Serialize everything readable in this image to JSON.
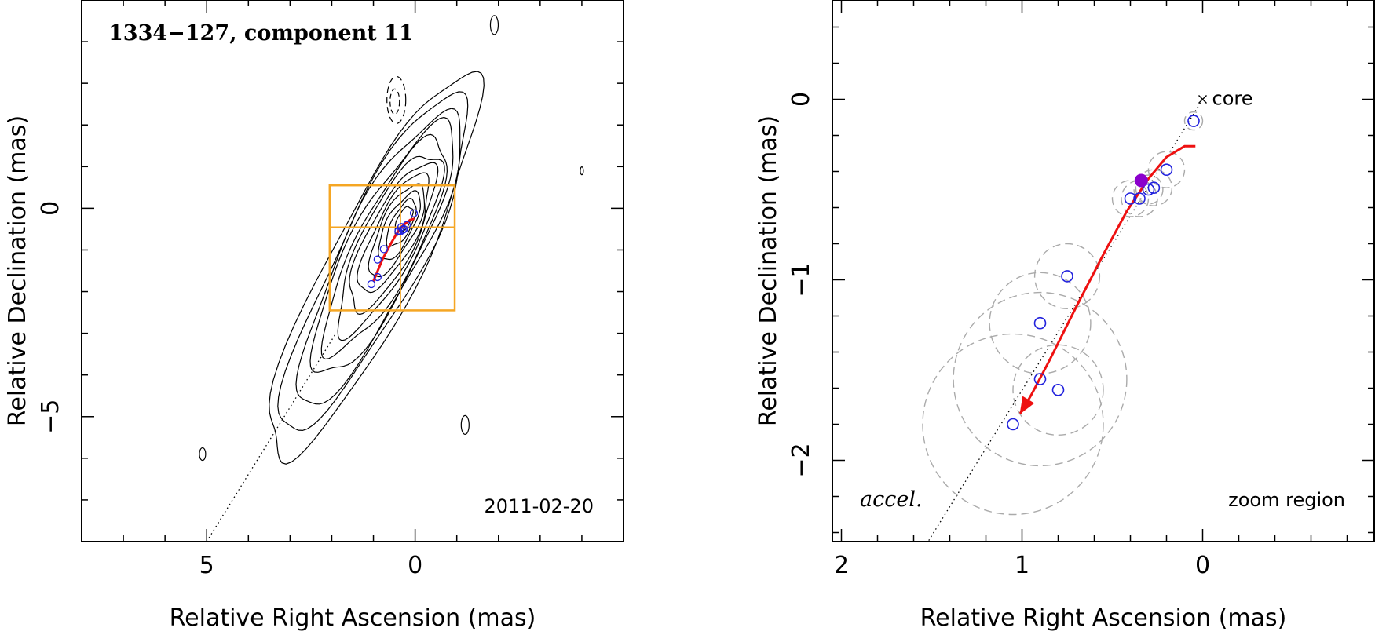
{
  "chart_data": [
    {
      "type": "contour",
      "title": "1334−127, component 11",
      "date_label": "2011-02-20",
      "xlabel": "Relative Right Ascension (mas)",
      "ylabel": "Relative Declination (mas)",
      "xlim": [
        8.0,
        -5.0
      ],
      "ylim": [
        -8.0,
        5.0
      ],
      "xticks": [
        {
          "value": 5,
          "label": "5"
        },
        {
          "value": 0,
          "label": "0"
        }
      ],
      "yticks": [
        {
          "value": 0,
          "label": "0"
        },
        {
          "value": -5,
          "label": "−5"
        }
      ],
      "x_minor_step": 1,
      "y_minor_step": 1,
      "jet_axis": {
        "style": "dotted",
        "from": [
          5.0,
          -8.0
        ],
        "to": [
          1.9,
          -3.0
        ]
      },
      "zoom_box": {
        "x": [
          2.05,
          -0.95
        ],
        "y": [
          -2.45,
          0.55
        ],
        "divider_x": 0.35,
        "divider_y": -0.45,
        "color": "#f5a623"
      },
      "positions": {
        "color": "#2222dd",
        "points": [
          [
            1.05,
            -1.82
          ],
          [
            0.9,
            -1.65
          ],
          [
            0.9,
            -1.23
          ],
          [
            0.75,
            -0.98
          ],
          [
            0.4,
            -0.55
          ],
          [
            0.35,
            -0.55
          ],
          [
            0.33,
            -0.45
          ],
          [
            0.3,
            -0.52
          ],
          [
            0.27,
            -0.5
          ],
          [
            0.2,
            -0.4
          ],
          [
            0.03,
            -0.12
          ]
        ]
      },
      "trajectory": {
        "color": "#ee1111",
        "points": [
          [
            1.0,
            -1.75
          ],
          [
            0.78,
            -1.22
          ],
          [
            0.6,
            -0.88
          ],
          [
            0.45,
            -0.62
          ],
          [
            0.3,
            -0.42
          ],
          [
            0.12,
            -0.28
          ],
          [
            0.02,
            -0.25
          ]
        ]
      },
      "contours": {
        "center": [
          0.0,
          0.0
        ],
        "color": "#000000",
        "levels": 12,
        "negative_style": "dashed"
      }
    },
    {
      "type": "scatter",
      "annotation_left": "accel.",
      "annotation_right": "zoom region",
      "core_label": "core",
      "xlabel": "Relative Right Ascension (mas)",
      "ylabel": "Relative Declination (mas)",
      "xlim": [
        2.05,
        -0.95
      ],
      "ylim": [
        -2.45,
        0.55
      ],
      "xticks": [
        {
          "value": 2,
          "label": "2"
        },
        {
          "value": 1,
          "label": "1"
        },
        {
          "value": 0,
          "label": "0"
        }
      ],
      "yticks": [
        {
          "value": 0,
          "label": "0"
        },
        {
          "value": -1,
          "label": "−1"
        },
        {
          "value": -2,
          "label": "−2"
        }
      ],
      "x_minor_step": 0.2,
      "y_minor_step": 0.2,
      "core": [
        0.0,
        0.0
      ],
      "jet_axis": {
        "style": "dotted",
        "from": [
          0.0,
          0.0
        ],
        "to": [
          1.52,
          -2.45
        ]
      },
      "positions": {
        "color": "#2222dd",
        "points": [
          {
            "x": 1.05,
            "y": -1.8,
            "err": 0.5
          },
          {
            "x": 0.9,
            "y": -1.55,
            "err": 0.48
          },
          {
            "x": 0.8,
            "y": -1.61,
            "err": 0.25
          },
          {
            "x": 0.9,
            "y": -1.24,
            "err": 0.28
          },
          {
            "x": 0.75,
            "y": -0.98,
            "err": 0.18
          },
          {
            "x": 0.4,
            "y": -0.55,
            "err": 0.1
          },
          {
            "x": 0.35,
            "y": -0.55,
            "err": 0.1
          },
          {
            "x": 0.3,
            "y": -0.5,
            "err": 0.08
          },
          {
            "x": 0.27,
            "y": -0.49,
            "err": 0.1
          },
          {
            "x": 0.2,
            "y": -0.39,
            "err": 0.1
          },
          {
            "x": 0.05,
            "y": -0.12,
            "err": 0.05
          }
        ]
      },
      "reference_point": {
        "x": 0.34,
        "y": -0.45,
        "color": "#8b00cc"
      },
      "trajectory": {
        "color": "#ee1111",
        "arrow": "end",
        "points": [
          [
            0.04,
            -0.26
          ],
          [
            0.1,
            -0.26
          ],
          [
            0.2,
            -0.32
          ],
          [
            0.3,
            -0.44
          ],
          [
            0.42,
            -0.62
          ],
          [
            0.55,
            -0.86
          ],
          [
            0.7,
            -1.15
          ],
          [
            0.85,
            -1.45
          ],
          [
            0.95,
            -1.64
          ],
          [
            1.01,
            -1.74
          ]
        ]
      }
    }
  ]
}
